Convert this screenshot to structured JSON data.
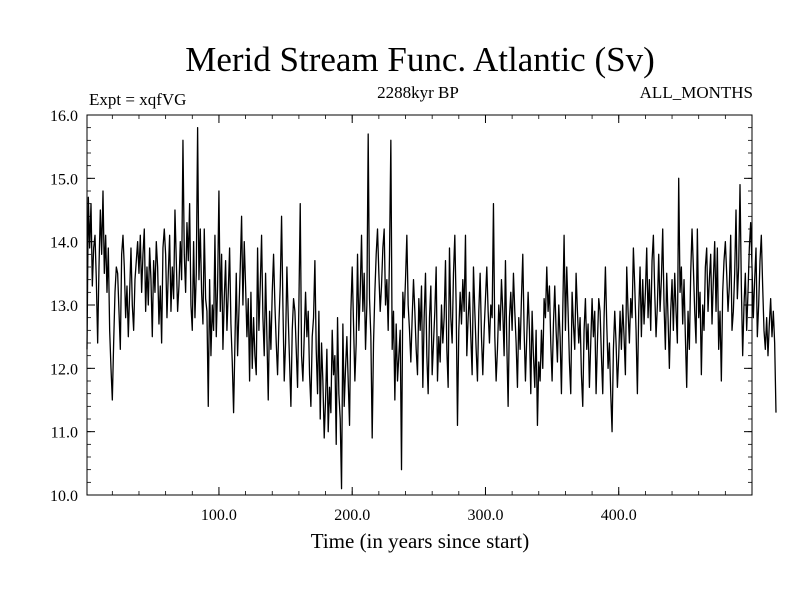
{
  "chart_data": {
    "type": "line",
    "title": "Merid Stream Func. Atlantic (Sv)",
    "subtitle_left": "Expt = xqfVG",
    "subtitle_center": "2288kyr BP",
    "subtitle_right": "ALL_MONTHS",
    "xlabel": "Time (in years since start)",
    "ylabel": "",
    "xlim": [
      1,
      500
    ],
    "ylim": [
      10.0,
      16.0
    ],
    "x_ticks": [
      100,
      200,
      300,
      400
    ],
    "x_tick_labels": [
      "100.0",
      "200.0",
      "300.0",
      "400.0"
    ],
    "y_ticks": [
      10,
      11,
      12,
      13,
      14,
      15,
      16
    ],
    "y_tick_labels": [
      "10.0",
      "11.0",
      "12.0",
      "13.0",
      "14.0",
      "15.0",
      "16.0"
    ],
    "x_start": 1,
    "x_step": 1,
    "series": [
      {
        "name": "Merid Stream Func. Atlantic",
        "color": "#000000",
        "values": [
          12.3,
          14.7,
          13.9,
          14.6,
          13.3,
          13.9,
          14.1,
          13.4,
          12.4,
          13.6,
          14.5,
          13.8,
          14.8,
          13.5,
          14.1,
          13.2,
          13.9,
          12.6,
          12.0,
          11.5,
          12.4,
          13.2,
          13.6,
          13.5,
          12.9,
          12.3,
          13.8,
          14.1,
          13.6,
          12.8,
          13.3,
          12.5,
          13.2,
          13.9,
          13.0,
          12.6,
          13.4,
          13.7,
          14.0,
          13.5,
          14.1,
          13.2,
          13.8,
          14.2,
          12.9,
          13.6,
          13.0,
          13.9,
          13.4,
          12.5,
          13.7,
          13.2,
          14.0,
          13.6,
          12.7,
          13.3,
          12.4,
          13.9,
          14.2,
          13.8,
          12.8,
          13.5,
          14.1,
          12.9,
          13.6,
          13.1,
          14.5,
          13.7,
          12.9,
          13.3,
          14.0,
          13.4,
          15.6,
          13.8,
          13.2,
          14.3,
          13.7,
          14.6,
          13.0,
          12.6,
          14.0,
          12.8,
          13.5,
          15.8,
          13.4,
          14.2,
          13.2,
          12.7,
          14.2,
          13.1,
          12.9,
          11.4,
          13.4,
          12.2,
          13.0,
          12.6,
          14.1,
          12.5,
          13.3,
          14.8,
          12.9,
          13.8,
          12.3,
          13.1,
          13.7,
          12.6,
          13.2,
          13.9,
          12.7,
          12.1,
          11.3,
          12.4,
          13.5,
          12.2,
          12.9,
          13.6,
          14.4,
          13.0,
          14.0,
          13.3,
          12.5,
          13.1,
          11.8,
          13.2,
          12.0,
          12.8,
          12.2,
          11.9,
          13.9,
          12.6,
          13.3,
          14.1,
          12.8,
          12.2,
          13.5,
          12.5,
          11.5,
          12.9,
          12.3,
          13.2,
          13.8,
          13.0,
          12.4,
          11.9,
          12.7,
          13.3,
          14.4,
          13.0,
          11.8,
          12.4,
          13.6,
          12.8,
          12.1,
          11.4,
          12.6,
          13.1,
          12.9,
          12.3,
          11.7,
          13.0,
          14.6,
          12.2,
          11.8,
          12.5,
          13.2,
          12.5,
          12.9,
          11.9,
          11.4,
          12.5,
          12.8,
          13.7,
          12.3,
          11.6,
          12.9,
          11.2,
          12.4,
          11.8,
          10.9,
          11.5,
          12.3,
          11.0,
          11.7,
          11.3,
          12.6,
          11.9,
          12.2,
          10.8,
          12.8,
          11.6,
          11.2,
          10.1,
          12.7,
          11.4,
          12.0,
          12.5,
          11.8,
          11.1,
          12.9,
          13.6,
          12.7,
          11.8,
          12.4,
          13.8,
          12.6,
          13.2,
          14.1,
          12.9,
          13.5,
          12.3,
          13.0,
          15.7,
          13.1,
          12.5,
          10.9,
          12.4,
          13.2,
          13.8,
          14.2,
          13.5,
          12.9,
          13.3,
          13.9,
          14.2,
          13.0,
          13.4,
          12.6,
          13.8,
          15.6,
          12.3,
          12.9,
          11.5,
          12.7,
          11.8,
          12.2,
          12.6,
          10.4,
          13.2,
          12.8,
          13.4,
          14.1,
          13.0,
          12.6,
          12.1,
          12.8,
          13.4,
          12.9,
          12.3,
          11.9,
          13.1,
          12.6,
          13.3,
          11.7,
          12.8,
          13.5,
          12.2,
          11.6,
          12.8,
          13.3,
          11.9,
          12.4,
          12.9,
          13.6,
          11.8,
          12.5,
          12.1,
          13.0,
          12.4,
          12.8,
          13.7,
          12.3,
          11.7,
          13.9,
          12.8,
          12.4,
          13.5,
          14.1,
          13.0,
          11.1,
          12.6,
          13.2,
          12.7,
          13.4,
          12.9,
          14.1,
          12.2,
          12.8,
          13.2,
          12.5,
          11.9,
          13.6,
          12.9,
          12.3,
          11.8,
          12.9,
          13.5,
          12.5,
          11.9,
          12.6,
          13.1,
          13.6,
          12.9,
          12.4,
          13.0,
          12.8,
          14.6,
          12.5,
          11.8,
          12.3,
          13.0,
          12.6,
          13.4,
          12.9,
          12.2,
          13.7,
          12.4,
          11.4,
          12.8,
          13.2,
          12.6,
          13.5,
          12.9,
          12.4,
          11.7,
          12.8,
          12.3,
          13.1,
          13.8,
          12.6,
          11.8,
          12.5,
          13.2,
          12.6,
          11.6,
          12.9,
          12.2,
          11.7,
          12.6,
          11.1,
          12.1,
          11.8,
          12.6,
          12.0,
          13.1,
          12.8,
          13.6,
          12.9,
          13.3,
          12.4,
          11.8,
          12.7,
          13.3,
          12.6,
          12.1,
          13.0,
          12.5,
          11.6,
          12.9,
          14.1,
          12.6,
          13.6,
          12.9,
          12.1,
          11.6,
          13.2,
          12.7,
          12.3,
          13.5,
          12.9,
          12.4,
          12.8,
          11.9,
          11.4,
          12.6,
          13.1,
          12.3,
          12.7,
          11.7,
          12.4,
          13.1,
          12.5,
          12.9,
          11.6,
          12.4,
          13.1,
          12.9,
          12.2,
          11.6,
          12.8,
          13.6,
          12.7,
          12.0,
          12.4,
          11.6,
          11.0,
          12.3,
          12.9,
          12.4,
          11.7,
          12.2,
          12.9,
          12.3,
          13.0,
          12.5,
          11.9,
          13.6,
          12.9,
          12.4,
          13.1,
          12.8,
          13.9,
          13.3,
          12.6,
          11.6,
          12.9,
          13.6,
          12.5,
          13.4,
          12.7,
          13.2,
          13.9,
          12.8,
          13.4,
          12.6,
          13.7,
          14.1,
          13.2,
          12.5,
          13.0,
          13.8,
          12.9,
          13.4,
          14.2,
          13.0,
          12.3,
          13.5,
          12.8,
          12.0,
          12.9,
          13.4,
          12.6,
          13.5,
          12.9,
          12.4,
          15.0,
          13.2,
          13.6,
          12.7,
          13.4,
          12.5,
          11.7,
          12.9,
          12.3,
          13.5,
          14.2,
          13.6,
          12.9,
          12.4,
          14.2,
          12.8,
          13.2,
          11.9,
          13.0,
          12.6,
          13.6,
          13.9,
          12.9,
          13.4,
          13.8,
          12.7,
          13.4,
          14.0,
          12.9,
          13.9,
          12.3,
          12.9,
          11.8,
          13.2,
          13.7,
          14.0,
          13.5,
          12.9,
          13.3,
          14.1,
          12.6,
          12.9,
          13.5,
          14.5,
          13.1,
          13.6,
          14.9,
          13.3,
          12.2,
          13.0,
          13.5,
          12.6,
          13.2,
          13.9,
          14.3,
          13.6,
          12.8,
          13.4,
          13.9,
          12.5,
          13.0,
          13.7,
          14.1,
          13.3,
          12.6,
          12.3,
          12.8,
          12.2,
          12.7,
          13.1,
          12.5,
          12.9,
          12.4,
          11.3
        ]
      }
    ]
  }
}
